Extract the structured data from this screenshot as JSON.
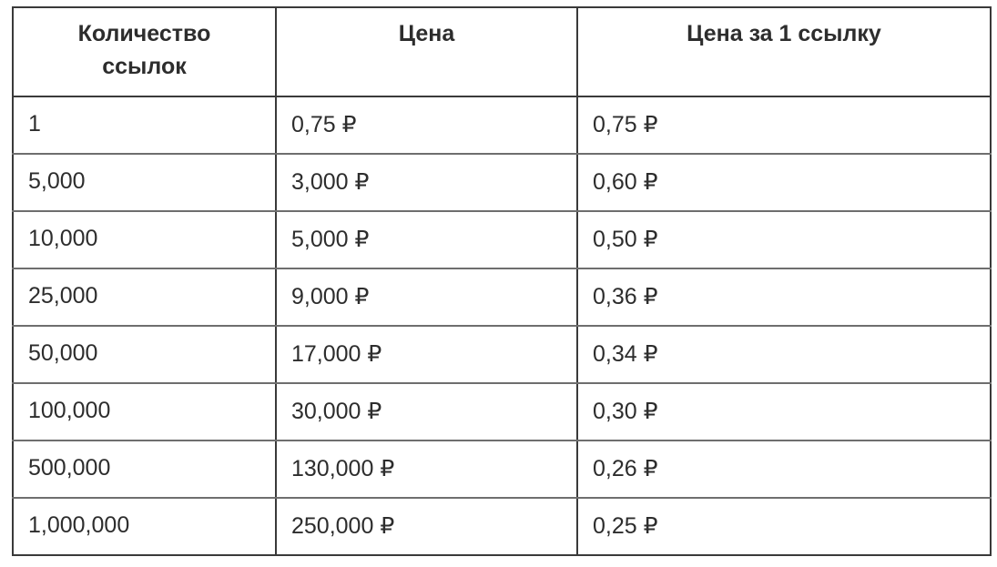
{
  "chart_data": {
    "type": "table",
    "columns": [
      "Количество\nссылок",
      "Цена",
      "Цена за 1 ссылку"
    ],
    "rows": [
      [
        "1",
        "0,75 ₽",
        "0,75 ₽"
      ],
      [
        "5,000",
        "3,000 ₽",
        "0,60 ₽"
      ],
      [
        "10,000",
        "5,000 ₽",
        "0,50 ₽"
      ],
      [
        "25,000",
        "9,000 ₽",
        "0,36 ₽"
      ],
      [
        "50,000",
        "17,000 ₽",
        "0,34 ₽"
      ],
      [
        "100,000",
        "30,000 ₽",
        "0,30 ₽"
      ],
      [
        "500,000",
        "130,000 ₽",
        "0,26 ₽"
      ],
      [
        "1,000,000",
        "250,000 ₽",
        "0,25 ₽"
      ]
    ],
    "layout": {
      "grid": true,
      "header_align": "center",
      "cell_align": "left"
    },
    "colors": {
      "border_dark": "#3a3a3a",
      "border_light": "#6e6e6e",
      "text": "#2d2d2d",
      "background": "#ffffff"
    }
  }
}
